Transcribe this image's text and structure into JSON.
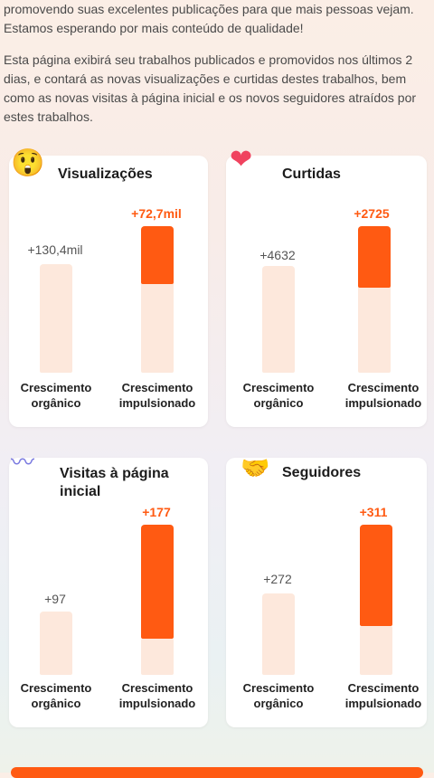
{
  "intro": {
    "p1": "promovendo suas excelentes publicações para que mais pessoas vejam. Estamos esperando por mais conteúdo de qualidade!",
    "p2": "Esta página exibirá seu trabalhos publicados e promovidos nos últimos 2 dias, e contará as novas visualizações e curtidas destes trabalhos, bem como as novas visitas à página inicial e os novos seguidores atraídos por estes trabalhos."
  },
  "labels": {
    "organic": "Crescimento orgânico",
    "boosted": "Crescimento impulsionado"
  },
  "cards": [
    {
      "title": "Visualizações",
      "icon": "surprised-face-icon",
      "organic": "+130,4mil",
      "boosted": "+72,7mil",
      "organic_ratio": 1.0,
      "boosted_ratio": 0.56
    },
    {
      "title": "Curtidas",
      "icon": "heart-icon",
      "organic": "+4632",
      "boosted": "+2725",
      "organic_ratio": 1.0,
      "boosted_ratio": 0.59
    },
    {
      "title": "Visitas à página inicial",
      "icon": "wave-icon",
      "organic": "+97",
      "boosted": "+177",
      "organic_ratio": 0.55,
      "boosted_ratio": 1.0
    },
    {
      "title": "Seguidores",
      "icon": "handshake-icon",
      "organic": "+272",
      "boosted": "+311",
      "organic_ratio": 0.87,
      "boosted_ratio": 1.0
    }
  ],
  "colors": {
    "accent": "#ff5a12",
    "track": "#fde8dc"
  }
}
